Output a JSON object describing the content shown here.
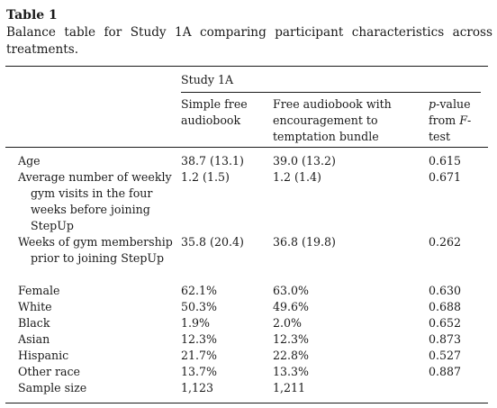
{
  "table_label": "Table 1",
  "caption": "Balance table for Study 1A comparing participant characteristics across treatments.",
  "study_header": "Study 1A",
  "columns": {
    "col1": "Simple free audiobook",
    "col2": "Free audiobook with encouragement to temptation bundle",
    "col3_italic": "p",
    "col3_rest": "-value from ",
    "col3_italic2": "F",
    "col3_tail": "-test"
  },
  "rows": [
    {
      "label": "Age",
      "c1": "38.7 (13.1)",
      "c2": "39.0 (13.2)",
      "c3": "0.615"
    },
    {
      "label": "Average number of weekly gym visits in the four weeks before joining StepUp",
      "c1": "1.2 (1.5)",
      "c2": "1.2 (1.4)",
      "c3": "0.671"
    },
    {
      "label": "Weeks of gym membership prior to joining StepUp",
      "c1": "35.8 (20.4)",
      "c2": "36.8 (19.8)",
      "c3": "0.262"
    },
    {
      "label": "Female",
      "c1": "62.1%",
      "c2": "63.0%",
      "c3": "0.630"
    },
    {
      "label": "White",
      "c1": "50.3%",
      "c2": "49.6%",
      "c3": "0.688"
    },
    {
      "label": "Black",
      "c1": "1.9%",
      "c2": "2.0%",
      "c3": "0.652"
    },
    {
      "label": "Asian",
      "c1": "12.3%",
      "c2": "12.3%",
      "c3": "0.873"
    },
    {
      "label": "Hispanic",
      "c1": "21.7%",
      "c2": "22.8%",
      "c3": "0.527"
    },
    {
      "label": "Other race",
      "c1": "13.7%",
      "c2": "13.3%",
      "c3": "0.887"
    },
    {
      "label": "Sample size",
      "c1": "1,123",
      "c2": "1,211",
      "c3": ""
    }
  ]
}
